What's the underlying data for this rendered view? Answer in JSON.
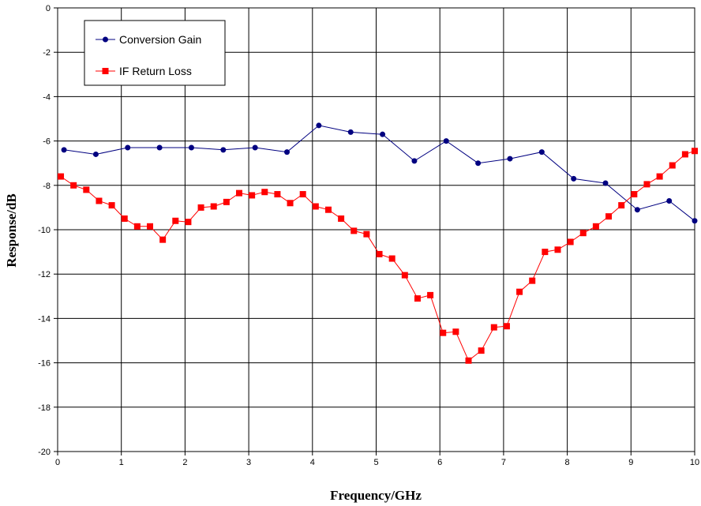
{
  "chart_data": {
    "type": "line",
    "xlabel": "Frequency/GHz",
    "ylabel": "Response/dB",
    "xlim": [
      0,
      10
    ],
    "ylim": [
      -20,
      0
    ],
    "x_ticks": [
      0,
      1,
      2,
      3,
      4,
      5,
      6,
      7,
      8,
      9,
      10
    ],
    "y_ticks": [
      0,
      -2,
      -4,
      -6,
      -8,
      -10,
      -12,
      -14,
      -16,
      -18,
      -20
    ],
    "grid": true,
    "legend_position": "top-left",
    "series": [
      {
        "name": "Conversion Gain",
        "color": "#000080",
        "marker": "circle",
        "points": [
          [
            0.1,
            -6.4
          ],
          [
            0.6,
            -6.6
          ],
          [
            1.1,
            -6.3
          ],
          [
            1.6,
            -6.3
          ],
          [
            2.1,
            -6.3
          ],
          [
            2.6,
            -6.4
          ],
          [
            3.1,
            -6.3
          ],
          [
            3.6,
            -6.5
          ],
          [
            4.1,
            -5.3
          ],
          [
            4.6,
            -5.6
          ],
          [
            5.1,
            -5.7
          ],
          [
            5.6,
            -6.9
          ],
          [
            6.1,
            -6.0
          ],
          [
            6.6,
            -7.0
          ],
          [
            7.1,
            -6.8
          ],
          [
            7.6,
            -6.5
          ],
          [
            8.1,
            -7.7
          ],
          [
            8.6,
            -7.9
          ],
          [
            9.1,
            -9.1
          ],
          [
            9.6,
            -8.7
          ],
          [
            10.0,
            -9.6
          ]
        ]
      },
      {
        "name": "IF Return Loss",
        "color": "#ff0000",
        "marker": "square",
        "points": [
          [
            0.05,
            -7.6
          ],
          [
            0.25,
            -8.0
          ],
          [
            0.45,
            -8.2
          ],
          [
            0.65,
            -8.7
          ],
          [
            0.85,
            -8.9
          ],
          [
            1.05,
            -9.5
          ],
          [
            1.25,
            -9.85
          ],
          [
            1.45,
            -9.85
          ],
          [
            1.65,
            -10.45
          ],
          [
            1.85,
            -9.6
          ],
          [
            2.05,
            -9.65
          ],
          [
            2.25,
            -9.0
          ],
          [
            2.45,
            -8.95
          ],
          [
            2.65,
            -8.75
          ],
          [
            2.85,
            -8.35
          ],
          [
            3.05,
            -8.45
          ],
          [
            3.25,
            -8.3
          ],
          [
            3.45,
            -8.4
          ],
          [
            3.65,
            -8.8
          ],
          [
            3.85,
            -8.4
          ],
          [
            4.05,
            -8.95
          ],
          [
            4.25,
            -9.1
          ],
          [
            4.45,
            -9.5
          ],
          [
            4.65,
            -10.05
          ],
          [
            4.85,
            -10.2
          ],
          [
            5.05,
            -11.1
          ],
          [
            5.25,
            -11.3
          ],
          [
            5.45,
            -12.05
          ],
          [
            5.65,
            -13.1
          ],
          [
            5.85,
            -12.95
          ],
          [
            6.05,
            -14.65
          ],
          [
            6.25,
            -14.6
          ],
          [
            6.45,
            -15.9
          ],
          [
            6.65,
            -15.45
          ],
          [
            6.85,
            -14.4
          ],
          [
            7.05,
            -14.35
          ],
          [
            7.25,
            -12.8
          ],
          [
            7.45,
            -12.3
          ],
          [
            7.65,
            -11.0
          ],
          [
            7.85,
            -10.9
          ],
          [
            8.05,
            -10.55
          ],
          [
            8.25,
            -10.15
          ],
          [
            8.45,
            -9.85
          ],
          [
            8.65,
            -9.4
          ],
          [
            8.85,
            -8.9
          ],
          [
            9.05,
            -8.4
          ],
          [
            9.25,
            -7.95
          ],
          [
            9.45,
            -7.6
          ],
          [
            9.65,
            -7.1
          ],
          [
            9.85,
            -6.6
          ],
          [
            10.0,
            -6.45
          ]
        ]
      }
    ]
  }
}
